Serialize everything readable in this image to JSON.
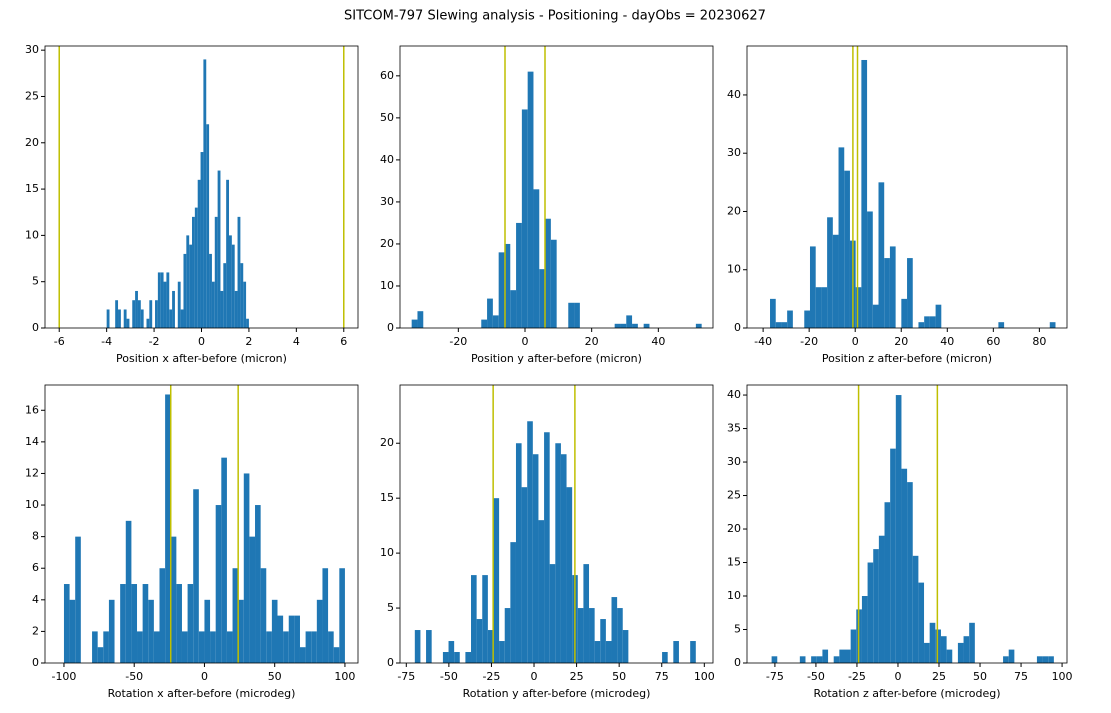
{
  "title": "SITCOM-797 Slewing analysis - Positioning - dayObs = 20230627",
  "chart_data": [
    {
      "type": "histogram",
      "xlabel": "Position x after-before (micron)",
      "color": "#1f77b4",
      "bins": [
        -4,
        -3.88,
        -3.76,
        -3.64,
        -3.52,
        -3.4,
        -3.28,
        -3.16,
        -3.04,
        -2.92,
        -2.8,
        -2.68,
        -2.56,
        -2.44,
        -2.32,
        -2.2,
        -2.08,
        -1.96,
        -1.84,
        -1.72,
        -1.6,
        -1.48,
        -1.36,
        -1.24,
        -1.12,
        -1,
        -0.88,
        -0.76,
        -0.64,
        -0.52,
        -0.4,
        -0.28,
        -0.16,
        -0.04,
        0.08,
        0.2,
        0.32,
        0.44,
        0.56,
        0.68,
        0.8,
        0.92,
        1.04,
        1.16,
        1.28,
        1.4,
        1.52,
        1.64,
        1.76,
        1.88,
        2
      ],
      "values": [
        2,
        0,
        0,
        3,
        2,
        0,
        2,
        1,
        0,
        3,
        4,
        3,
        2,
        0,
        1,
        3,
        0,
        3,
        6,
        6,
        5,
        6,
        2,
        4,
        0,
        5,
        2,
        8,
        10,
        9,
        12,
        13,
        16,
        19,
        29,
        22,
        8,
        5,
        12,
        17,
        4,
        7,
        16,
        10,
        9,
        4,
        12,
        7,
        5,
        1
      ],
      "vlines": [
        -6,
        6
      ],
      "vline_color": "#bfbf00",
      "xlim": [
        -6.6,
        6.6
      ],
      "xticks": [
        -6,
        -4,
        -2,
        0,
        2,
        4,
        6
      ],
      "ylim": [
        0,
        30.45
      ],
      "yticks": [
        0,
        5,
        10,
        15,
        20,
        25,
        30
      ]
    },
    {
      "type": "histogram",
      "xlabel": "Position y after-before (micron)",
      "color": "#1f77b4",
      "bins": [
        -34,
        -32.26,
        -30.52,
        -28.78,
        -27.04,
        -25.3,
        -23.56,
        -21.82,
        -20.08,
        -18.34,
        -16.6,
        -14.86,
        -13.12,
        -11.38,
        -9.64,
        -7.9,
        -6.16,
        -4.42,
        -2.68,
        -0.94,
        0.8,
        2.54,
        4.28,
        6.02,
        7.76,
        9.5,
        11.24,
        12.98,
        14.72,
        16.46,
        18.2,
        19.94,
        21.68,
        23.42,
        25.16,
        26.9,
        28.64,
        30.38,
        32.12,
        33.86,
        35.6,
        37.34,
        39.08,
        40.82,
        42.56,
        44.3,
        46.04,
        47.78,
        49.52,
        51.26,
        53
      ],
      "values": [
        2,
        4,
        0,
        0,
        0,
        0,
        0,
        0,
        0,
        0,
        0,
        0,
        2,
        7,
        3,
        18,
        20,
        9,
        25,
        52,
        61,
        33,
        14,
        26,
        21,
        0,
        0,
        6,
        6,
        0,
        0,
        0,
        0,
        0,
        0,
        1,
        1,
        3,
        1,
        0,
        1,
        0,
        0,
        0,
        0,
        0,
        0,
        0,
        0,
        1
      ],
      "vlines": [
        -6,
        6
      ],
      "vline_color": "#bfbf00",
      "xlim": [
        -37.5,
        56.4
      ],
      "xticks": [
        -20,
        0,
        20,
        40
      ],
      "ylim": [
        0,
        67.1
      ],
      "yticks": [
        0,
        10,
        20,
        30,
        40,
        50,
        60
      ]
    },
    {
      "type": "histogram",
      "xlabel": "Position z after-before (micron)",
      "color": "#1f77b4",
      "bins": [
        -37,
        -34.52,
        -32.04,
        -29.56,
        -27.08,
        -24.6,
        -22.12,
        -19.64,
        -17.16,
        -14.68,
        -12.2,
        -9.72,
        -7.24,
        -4.76,
        -2.28,
        0.2,
        2.68,
        5.16,
        7.64,
        10.12,
        12.6,
        15.08,
        17.56,
        20.04,
        22.52,
        25,
        27.48,
        29.96,
        32.44,
        34.92,
        37.4,
        39.88,
        42.36,
        44.84,
        47.32,
        49.8,
        52.28,
        54.76,
        57.24,
        59.72,
        62.2,
        64.68,
        67.16,
        69.64,
        72.12,
        74.6,
        77.08,
        79.56,
        82.04,
        84.52,
        87
      ],
      "values": [
        5,
        1,
        1,
        3,
        0,
        0,
        3,
        14,
        7,
        7,
        19,
        16,
        31,
        27,
        15,
        7,
        46,
        20,
        4,
        25,
        12,
        14,
        0,
        5,
        12,
        0,
        1,
        2,
        2,
        4,
        0,
        0,
        0,
        0,
        0,
        0,
        0,
        0,
        0,
        0,
        1,
        0,
        0,
        0,
        0,
        0,
        0,
        0,
        0,
        1
      ],
      "vlines": [
        -1,
        1
      ],
      "vline_color": "#bfbf00",
      "xlim": [
        -47,
        92
      ],
      "xticks": [
        -40,
        -20,
        0,
        20,
        40,
        60,
        80
      ],
      "ylim": [
        0,
        48.4
      ],
      "yticks": [
        0,
        10,
        20,
        30,
        40
      ]
    },
    {
      "type": "histogram",
      "xlabel": "Rotation x after-before (microdeg)",
      "color": "#1f77b4",
      "bins": [
        -100,
        -96,
        -92,
        -88,
        -84,
        -80,
        -76,
        -72,
        -68,
        -64,
        -60,
        -56,
        -52,
        -48,
        -44,
        -40,
        -36,
        -32,
        -28,
        -24,
        -20,
        -16,
        -12,
        -8,
        -4,
        0,
        4,
        8,
        12,
        16,
        20,
        24,
        28,
        32,
        36,
        40,
        44,
        48,
        52,
        56,
        60,
        64,
        68,
        72,
        76,
        80,
        84,
        88,
        92,
        96,
        100
      ],
      "values": [
        5,
        4,
        8,
        0,
        0,
        2,
        1,
        2,
        4,
        0,
        5,
        9,
        5,
        2,
        5,
        4,
        2,
        6,
        17,
        8,
        5,
        2,
        5,
        11,
        2,
        4,
        2,
        10,
        13,
        2,
        6,
        4,
        12,
        8,
        10,
        6,
        2,
        4,
        3,
        2,
        3,
        3,
        1,
        2,
        2,
        4,
        6,
        2,
        1,
        6
      ],
      "vlines": [
        -24,
        24
      ],
      "vline_color": "#bfbf00",
      "xlim": [
        -113.5,
        109.3
      ],
      "xticks": [
        -100,
        -50,
        0,
        50,
        100
      ],
      "ylim": [
        0,
        17.6
      ],
      "yticks": [
        0,
        2,
        4,
        6,
        8,
        10,
        12,
        14,
        16
      ]
    },
    {
      "type": "histogram",
      "xlabel": "Rotation y after-before (microdeg)",
      "color": "#1f77b4",
      "bins": [
        -70,
        -66.7,
        -63.4,
        -60.1,
        -56.8,
        -53.5,
        -50.2,
        -46.9,
        -43.6,
        -40.3,
        -37,
        -33.7,
        -30.4,
        -27.1,
        -23.8,
        -20.5,
        -17.2,
        -13.9,
        -10.6,
        -7.3,
        -4,
        -0.7,
        2.6,
        5.9,
        9.2,
        12.5,
        15.8,
        19.1,
        22.4,
        25.7,
        29,
        32.3,
        35.6,
        38.9,
        42.2,
        45.5,
        48.8,
        52.1,
        55.4,
        58.7,
        62,
        65.3,
        68.6,
        71.9,
        75.2,
        78.5,
        81.8,
        85.1,
        88.4,
        91.7,
        95
      ],
      "values": [
        3,
        0,
        3,
        0,
        0,
        1,
        2,
        1,
        0,
        1,
        8,
        4,
        8,
        3,
        15,
        2,
        5,
        11,
        20,
        16,
        22,
        19,
        13,
        21,
        9,
        20,
        19,
        16,
        8,
        5,
        9,
        5,
        2,
        4,
        2,
        6,
        5,
        3,
        0,
        0,
        0,
        0,
        0,
        0,
        1,
        0,
        2,
        0,
        0,
        2
      ],
      "vlines": [
        -24,
        24
      ],
      "vline_color": "#bfbf00",
      "xlim": [
        -78.7,
        105.1
      ],
      "xticks": [
        -75,
        -50,
        -25,
        0,
        25,
        50,
        75,
        100
      ],
      "ylim": [
        0,
        25.3
      ],
      "yticks": [
        0,
        5,
        10,
        15,
        20
      ]
    },
    {
      "type": "histogram",
      "xlabel": "Rotation z after-before (microdeg)",
      "color": "#1f77b4",
      "bins": [
        -77,
        -73.56,
        -70.12,
        -66.68,
        -63.24,
        -59.8,
        -56.36,
        -52.92,
        -49.48,
        -46.04,
        -42.6,
        -39.16,
        -35.72,
        -32.28,
        -28.84,
        -25.4,
        -21.96,
        -18.52,
        -15.08,
        -11.64,
        -8.2,
        -4.76,
        -1.32,
        2.12,
        5.56,
        9,
        12.44,
        15.88,
        19.32,
        22.76,
        26.2,
        29.64,
        33.08,
        36.52,
        39.96,
        43.4,
        46.84,
        50.28,
        53.72,
        57.16,
        60.6,
        64.04,
        67.48,
        70.92,
        74.36,
        77.8,
        81.24,
        84.68,
        88.12,
        91.56,
        95
      ],
      "values": [
        1,
        0,
        0,
        0,
        0,
        1,
        0,
        1,
        1,
        2,
        0,
        1,
        2,
        2,
        5,
        8,
        10,
        15,
        17,
        19,
        24,
        32,
        40,
        29,
        27,
        16,
        12,
        3,
        6,
        5,
        4,
        2,
        0,
        3,
        4,
        6,
        0,
        0,
        0,
        0,
        0,
        1,
        2,
        0,
        0,
        0,
        0,
        1,
        1,
        1
      ],
      "vlines": [
        -24,
        24
      ],
      "vline_color": "#bfbf00",
      "xlim": [
        -92,
        103
      ],
      "xticks": [
        -75,
        -50,
        -25,
        0,
        25,
        50,
        75,
        100
      ],
      "ylim": [
        0,
        41.5
      ],
      "yticks": [
        0,
        5,
        10,
        15,
        20,
        25,
        30,
        35,
        40
      ]
    }
  ]
}
